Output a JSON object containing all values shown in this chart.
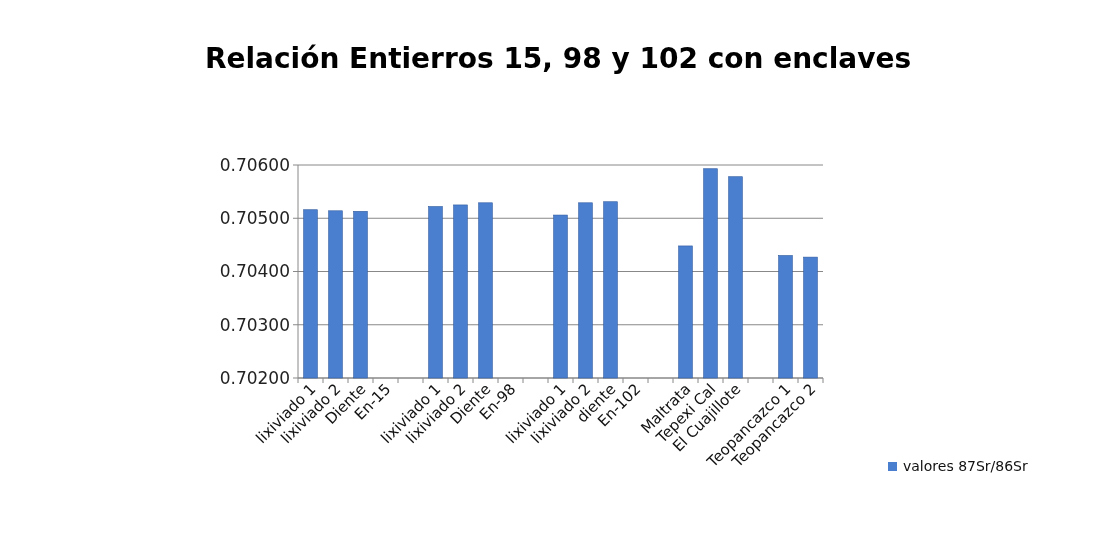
{
  "chart_data": {
    "type": "bar",
    "title": "Relación Entierros 15, 98 y 102 con enclaves",
    "categories": [
      "lixiviado 1",
      "lixiviado 2",
      "Diente",
      "En-15",
      null,
      "lixiviado 1",
      "lixiviado 2",
      "Diente",
      "En-98",
      null,
      "lixiviado 1",
      "lixiviado 2",
      "diente",
      "En-102",
      null,
      "Maltrata",
      "Tepexi Cal",
      "El Cuajillote",
      null,
      "Teopancazco 1",
      "Teopancazco 2"
    ],
    "series": [
      {
        "name": "valores 87Sr/86Sr",
        "color": "#4a7fd0",
        "values": [
          0.70516,
          0.70514,
          0.70513,
          null,
          null,
          0.70522,
          0.70525,
          0.70529,
          null,
          null,
          0.70506,
          0.70529,
          0.70531,
          null,
          null,
          0.70448,
          0.70593,
          0.70578,
          null,
          0.7043,
          0.70427
        ]
      }
    ],
    "ylim": [
      0.702,
      0.706
    ],
    "yticks": [
      {
        "value": 0.702,
        "label": "0.70200"
      },
      {
        "value": 0.703,
        "label": "0.70300"
      },
      {
        "value": 0.704,
        "label": "0.70400"
      },
      {
        "value": 0.705,
        "label": "0.70500"
      },
      {
        "value": 0.706,
        "label": "0.70600"
      }
    ],
    "grid": "y",
    "legend": "right"
  }
}
